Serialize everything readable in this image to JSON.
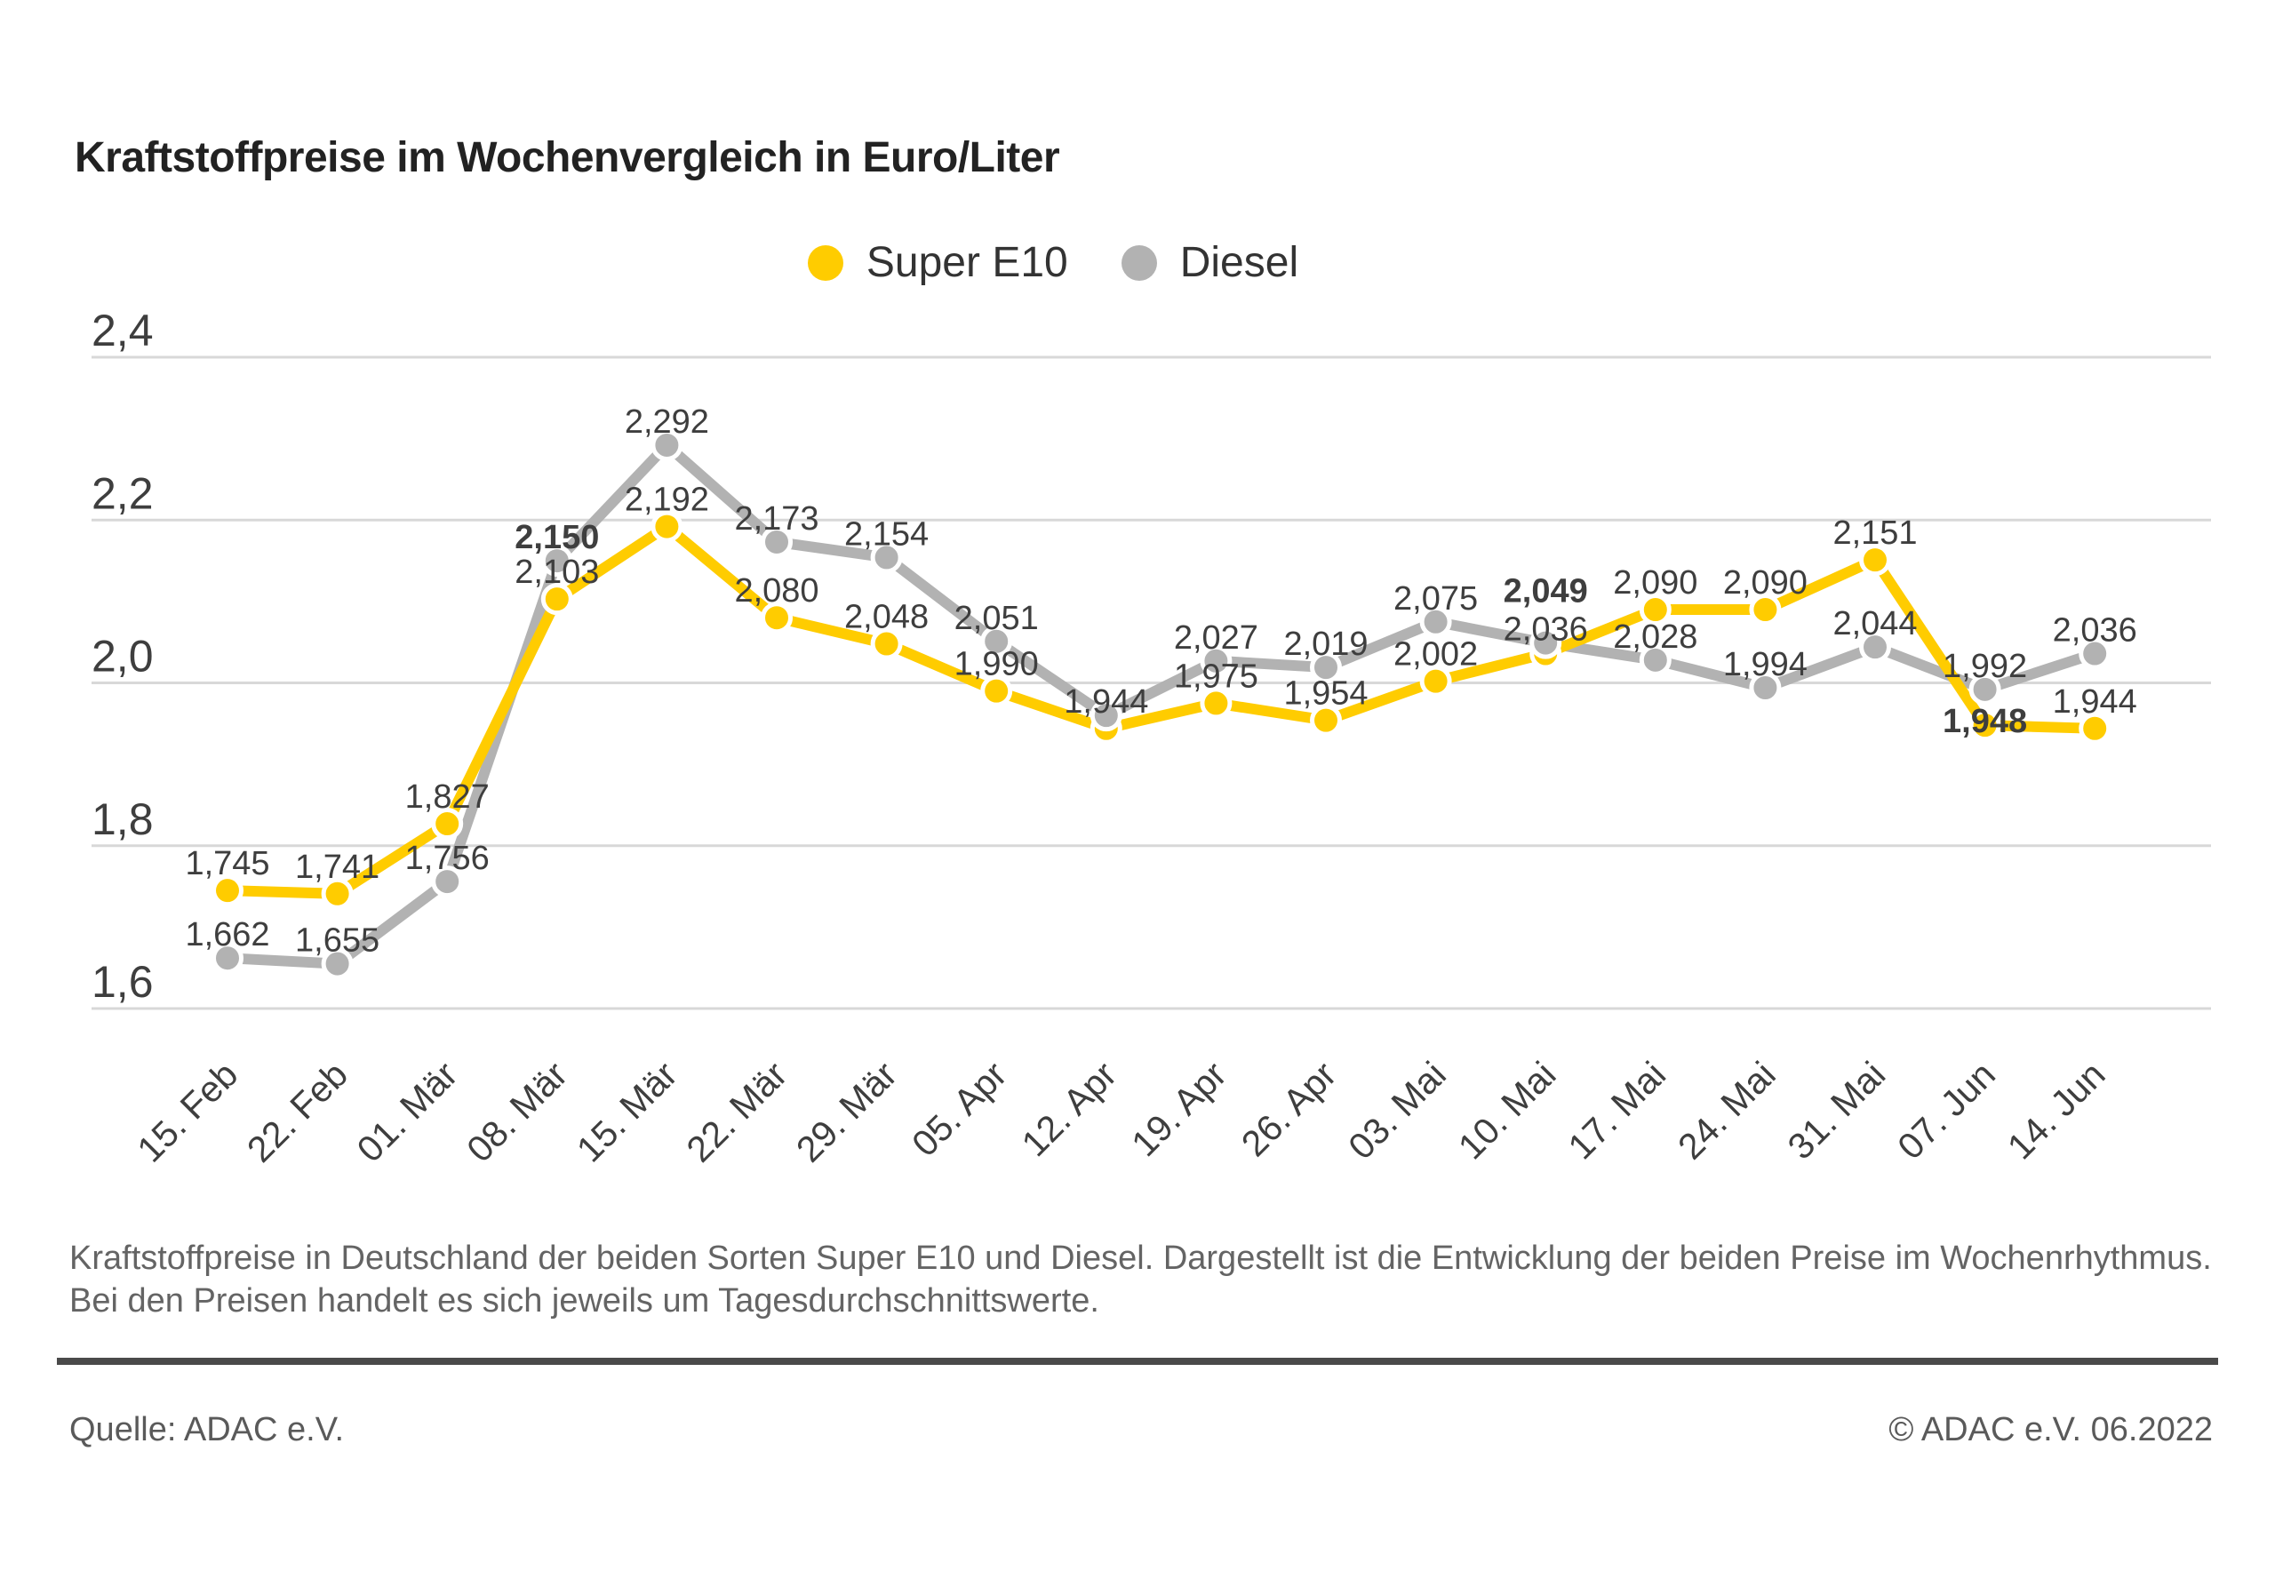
{
  "page": {
    "title": "Kraftstoffpreise im Wochenvergleich in Euro/Liter",
    "caption": "Kraftstoffpreise in Deutschland der beiden Sorten Super E10 und Diesel. Dargestellt ist die Entwicklung der beiden Preise im Wochenrhythmus. Bei den Preisen handelt es sich jeweils um Tagesdurchschnittswerte.",
    "source_left": "Quelle: ADAC e.V.",
    "source_right": "© ADAC e.V. 06.2022"
  },
  "legend": {
    "items": [
      {
        "label": "Super E10",
        "color": "#FFCC00"
      },
      {
        "label": "Diesel",
        "color": "#B2B2B2"
      }
    ]
  },
  "colors": {
    "super_e10": "#FFCC00",
    "diesel": "#B2B2B2",
    "grid": "#D8D8D8",
    "data_label": "#3E3E3E",
    "axis_text": "#3E3E3E",
    "dot_ring": "#FFFFFF"
  },
  "chart_data": {
    "type": "line",
    "title": "Kraftstoffpreise im Wochenvergleich in Euro/Liter",
    "xlabel": "",
    "ylabel": "Euro/Liter",
    "ylim": [
      1.6,
      2.4
    ],
    "grid": "horizontal",
    "legend_position": "top-center",
    "categories": [
      "15. Feb",
      "22. Feb",
      "01. Mär",
      "08. Mär",
      "15. Mär",
      "22. Mär",
      "29. Mär",
      "05. Apr",
      "12. Apr",
      "19. Apr",
      "26. Apr",
      "03. Mai",
      "10. Mai",
      "17. Mai",
      "24. Mai",
      "31. Mai",
      "07. Jun",
      "14. Jun"
    ],
    "yticks": [
      {
        "v": 2.4,
        "label": "2,4"
      },
      {
        "v": 2.2,
        "label": "2,2"
      },
      {
        "v": 2.0,
        "label": "2,0"
      },
      {
        "v": 1.8,
        "label": "1,8"
      },
      {
        "v": 1.6,
        "label": "1,6"
      }
    ],
    "series": [
      {
        "name": "Super E10",
        "color": "#FFCC00",
        "values": [
          1.745,
          1.741,
          1.827,
          2.103,
          2.192,
          2.08,
          2.048,
          1.99,
          1.944,
          1.975,
          1.954,
          2.002,
          2.036,
          2.09,
          2.09,
          2.151,
          1.948,
          1.944
        ],
        "labels": [
          {
            "t": "1,745"
          },
          {
            "t": "1,741"
          },
          {
            "t": "1,827"
          },
          {
            "t": "2,103"
          },
          {
            "t": "2,192"
          },
          {
            "t": "2,080"
          },
          {
            "t": "2,048"
          },
          {
            "t": "1,990"
          },
          {
            "t": "1,944"
          },
          {
            "t": "1,975"
          },
          {
            "t": "1,954"
          },
          {
            "t": "2,002"
          },
          {
            "t": "2,036",
            "dy": -15
          },
          {
            "t": "2,090"
          },
          {
            "t": "2,090"
          },
          {
            "t": "2,151"
          },
          {
            "t": "1,948",
            "bold": true,
            "dy": 8
          },
          {
            "t": "1,944"
          }
        ]
      },
      {
        "name": "Diesel",
        "color": "#B2B2B2",
        "values": [
          1.662,
          1.655,
          1.756,
          2.15,
          2.292,
          2.173,
          2.154,
          2.051,
          1.96,
          2.027,
          2.019,
          2.075,
          2.049,
          2.028,
          1.994,
          2.044,
          1.992,
          2.036
        ],
        "labels": [
          {
            "t": "1,662"
          },
          {
            "t": "1,655"
          },
          {
            "t": "1,756"
          },
          {
            "t": "2,150",
            "bold": true
          },
          {
            "t": "2,292"
          },
          {
            "t": "2,173"
          },
          {
            "t": "2,154"
          },
          {
            "t": "2,051"
          },
          {
            "t": ""
          },
          {
            "t": "2,027"
          },
          {
            "t": "2,019"
          },
          {
            "t": "2,075"
          },
          {
            "t": "2,049",
            "bold": true,
            "dy": -46
          },
          {
            "t": "2,028"
          },
          {
            "t": "1,994"
          },
          {
            "t": "2,044"
          },
          {
            "t": "1,992"
          },
          {
            "t": "2,036"
          }
        ]
      }
    ]
  }
}
